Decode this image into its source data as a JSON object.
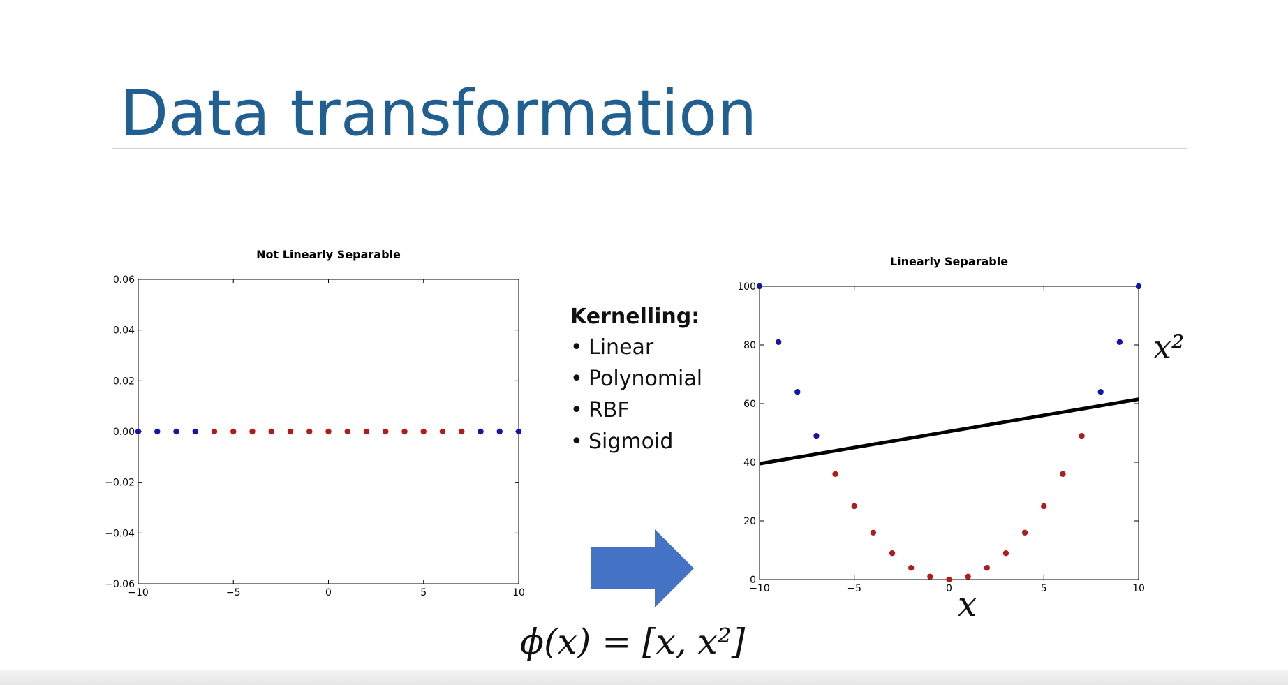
{
  "slide": {
    "title": "Data transformation",
    "kernelling_heading": "Kernelling:",
    "kernels": [
      "Linear",
      "Polynomial",
      "RBF",
      "Sigmoid"
    ],
    "formula": "ϕ(x) = [x, x²]",
    "x_axis_label": "x",
    "y_axis_label": "x²",
    "title_color": "#1f5f91",
    "arrow_color": "#4472c4"
  },
  "chart_data": [
    {
      "type": "scatter",
      "title": "Not Linearly Separable",
      "xlim": [
        -10,
        10
      ],
      "ylim": [
        -0.06,
        0.06
      ],
      "xticks": [
        -10,
        -5,
        0,
        5,
        10
      ],
      "yticks": [
        0.06,
        0.04,
        0.02,
        0.0,
        -0.02,
        -0.04,
        -0.06
      ],
      "xtick_labels": [
        "−10",
        "−5",
        "0",
        "5",
        "10"
      ],
      "ytick_labels": [
        "0.06",
        "0.04",
        "0.02",
        "0.00",
        "−0.02",
        "−0.04",
        "−0.06"
      ],
      "series": [
        {
          "color": "#1515a8",
          "x": [
            -10,
            -9,
            -8,
            -7,
            8,
            9,
            10
          ],
          "y": [
            0,
            0,
            0,
            0,
            0,
            0,
            0
          ]
        },
        {
          "color": "#b01c1c",
          "x": [
            -6,
            -5,
            -4,
            -3,
            -2,
            -1,
            0,
            1,
            2,
            3,
            4,
            5,
            6,
            7
          ],
          "y": [
            0,
            0,
            0,
            0,
            0,
            0,
            0,
            0,
            0,
            0,
            0,
            0,
            0,
            0
          ]
        }
      ],
      "grid": false
    },
    {
      "type": "scatter",
      "title": "Linearly Separable",
      "xlim": [
        -10,
        10
      ],
      "ylim": [
        0,
        100
      ],
      "xticks": [
        -10,
        -5,
        0,
        5,
        10
      ],
      "yticks": [
        100,
        80,
        60,
        40,
        20,
        0
      ],
      "xtick_labels": [
        "−10",
        "−5",
        "0",
        "5",
        "10"
      ],
      "ytick_labels": [
        "100",
        "80",
        "60",
        "40",
        "20",
        "0"
      ],
      "series": [
        {
          "color": "#1515a8",
          "x": [
            -10,
            -9,
            -8,
            -7,
            8,
            9,
            10
          ],
          "y": [
            100,
            81,
            64,
            49,
            64,
            81,
            100
          ]
        },
        {
          "color": "#b01c1c",
          "x": [
            -6,
            -5,
            -4,
            -3,
            -2,
            -1,
            0,
            1,
            2,
            3,
            4,
            5,
            6,
            7
          ],
          "y": [
            36,
            25,
            16,
            9,
            4,
            1,
            0,
            1,
            4,
            9,
            16,
            25,
            36,
            49
          ]
        }
      ],
      "line": {
        "color": "#000000",
        "x": [
          -10,
          10
        ],
        "y": [
          39.5,
          61.5
        ]
      },
      "grid": false
    }
  ]
}
